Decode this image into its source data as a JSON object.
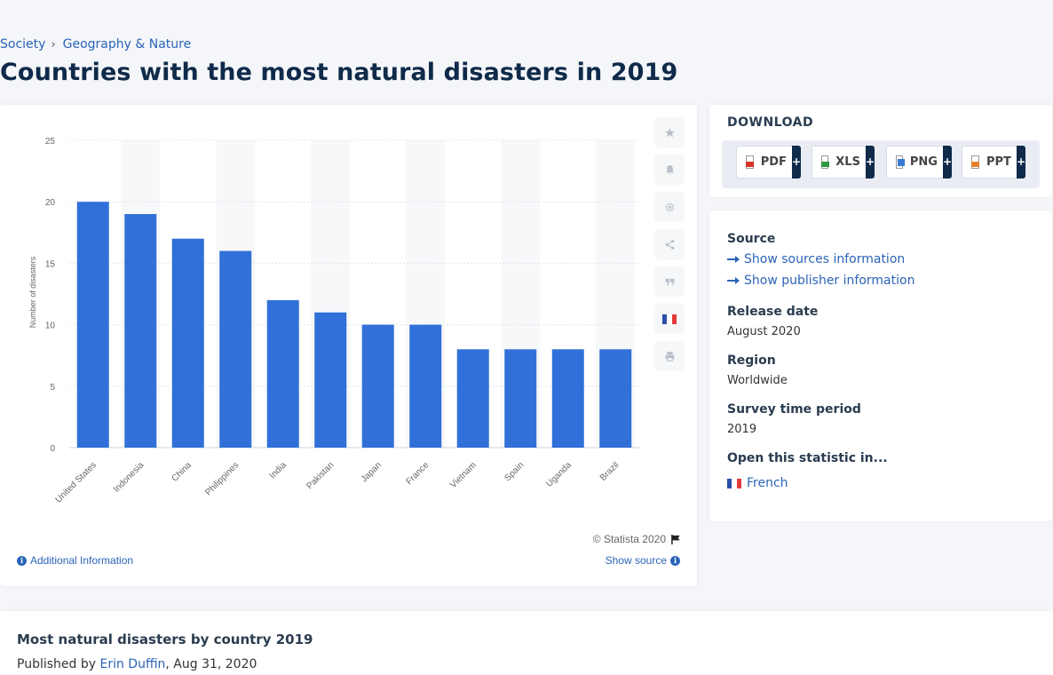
{
  "breadcrumb": {
    "items": [
      "Society",
      "Geography & Nature"
    ],
    "separator": "›"
  },
  "page_title": "Countries with the most natural disasters in 2019",
  "toolbar": {
    "icons": [
      "star-icon",
      "bell-icon",
      "gear-icon",
      "share-icon",
      "quote-icon",
      "french-flag-icon",
      "print-icon"
    ]
  },
  "chart_footer": {
    "credit": "© Statista 2020",
    "additional_info": "Additional Information",
    "show_source": "Show source"
  },
  "download": {
    "title": "DOWNLOAD",
    "buttons": [
      {
        "label": "PDF",
        "plus": "+"
      },
      {
        "label": "XLS",
        "plus": "+"
      },
      {
        "label": "PNG",
        "plus": "+"
      },
      {
        "label": "PPT",
        "plus": "+"
      }
    ]
  },
  "info": {
    "source_label": "Source",
    "show_sources": "Show sources information",
    "show_publisher": "Show publisher information",
    "release_label": "Release date",
    "release_value": "August 2020",
    "region_label": "Region",
    "region_value": "Worldwide",
    "period_label": "Survey time period",
    "period_value": "2019",
    "open_label": "Open this statistic in...",
    "french_link": "French"
  },
  "bottom": {
    "title": "Most natural disasters by country 2019",
    "published_prefix": "Published by",
    "author": "Erin Duffin",
    "date": ", Aug 31, 2020"
  },
  "colors": {
    "bar": "#3070d8",
    "accent": "#2b64b8",
    "dark": "#0f2a4a"
  },
  "chart_data": {
    "type": "bar",
    "categories": [
      "United States",
      "Indonesia",
      "China",
      "Philippines",
      "India",
      "Pakistan",
      "Japan",
      "France",
      "Vietnam",
      "Spain",
      "Uganda",
      "Brazil"
    ],
    "values": [
      20,
      19,
      17,
      16,
      12,
      11,
      10,
      10,
      8,
      8,
      8,
      8
    ],
    "ylabel": "Number of disasters",
    "xlabel": "",
    "ylim": [
      0,
      25
    ],
    "yticks": [
      0,
      5,
      10,
      15,
      20,
      25
    ],
    "grid": true
  }
}
